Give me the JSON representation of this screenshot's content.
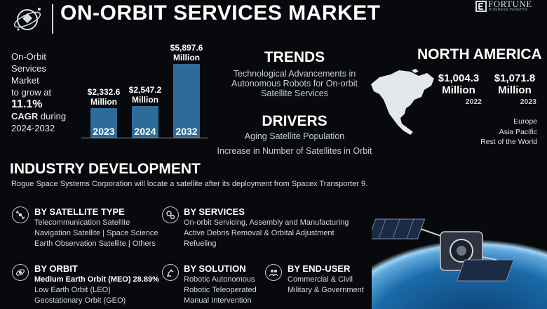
{
  "header": {
    "title": "ON-ORBIT SERVICES MARKET",
    "brand_name": "FORTUNE",
    "brand_sub": "BUSINESS INSIGHTS"
  },
  "growth": {
    "line1": "On-Orbit",
    "line2": "Services",
    "line3": "Market",
    "line4": "to grow at",
    "rate": "11.1%",
    "cagr_label": "CAGR",
    "during": "during",
    "period": "2024-2032"
  },
  "chart_data": {
    "type": "bar",
    "categories": [
      "2023",
      "2024",
      "2032"
    ],
    "values": [
      2332.6,
      2547.2,
      5897.6
    ],
    "labels": [
      "$2,332.6\nMillion",
      "$2,547.2\nMillion",
      "$5,897.6\nMillion"
    ],
    "value_texts": [
      "$2,332.6",
      "$2,547.2",
      "$5,897.6"
    ],
    "unit_text": "Million",
    "title": "",
    "xlabel": "",
    "ylabel": ""
  },
  "trends": {
    "title": "TRENDS",
    "text": "Technological Advancements in Autonomous Robots for On-orbit Satellite Services"
  },
  "drivers": {
    "title": "DRIVERS",
    "items": [
      "Aging Satellite Population",
      "Increase in Number of Satellites in Orbit"
    ]
  },
  "north_america": {
    "title": "NORTH AMERICA",
    "values": [
      {
        "value": "$1,004.3",
        "unit": "Million",
        "year": "2022"
      },
      {
        "value": "$1,071.8",
        "unit": "Million",
        "year": "2023"
      }
    ],
    "other_regions": [
      "Europe",
      "Asia Pacific",
      "Rest of the World"
    ]
  },
  "industry": {
    "title": "INDUSTRY DEVELOPMENT",
    "text": "Rogue Space Systems Corporation will locate a satellite after its deployment from Spacex Transporter 9."
  },
  "segments": {
    "satellite_type": {
      "title": "BY SATELLITE TYPE",
      "lines": [
        "Telecommunication Satellite",
        "Navigation Satellite  |  Space Science",
        "Earth Observation Satellite  |  Others"
      ]
    },
    "services": {
      "title": "BY SERVICES",
      "lines": [
        "On-orbit Servicing, Assembly and Manufacturing",
        "Active Debris Removal & Orbital Adjustment",
        "Refueling"
      ]
    },
    "orbit": {
      "title": "BY ORBIT",
      "highlight": "Medium Earth Orbit (MEO) 28.89%",
      "lines": [
        "Low Earth Orbit (LEO)",
        "Geostationary Orbit (GEO)"
      ]
    },
    "solution": {
      "title": "BY SOLUTION",
      "lines": [
        "Robotic Autonomous",
        "Robotic Teleoperated",
        "Manual Intervention"
      ]
    },
    "end_user": {
      "title": "BY END-USER",
      "lines": [
        "Commercial & Civil",
        "Military & Government"
      ]
    }
  },
  "colors": {
    "background": "#07090c",
    "bar": "#2d6c99",
    "accent_text": "#ffffff"
  },
  "icons": [
    "satellite-logo-icon",
    "brand-icon",
    "satellite-icon",
    "gears-icon",
    "orbit-icon",
    "robot-arm-icon",
    "users-icon",
    "north-america-map-icon",
    "satellite-earth-image"
  ]
}
